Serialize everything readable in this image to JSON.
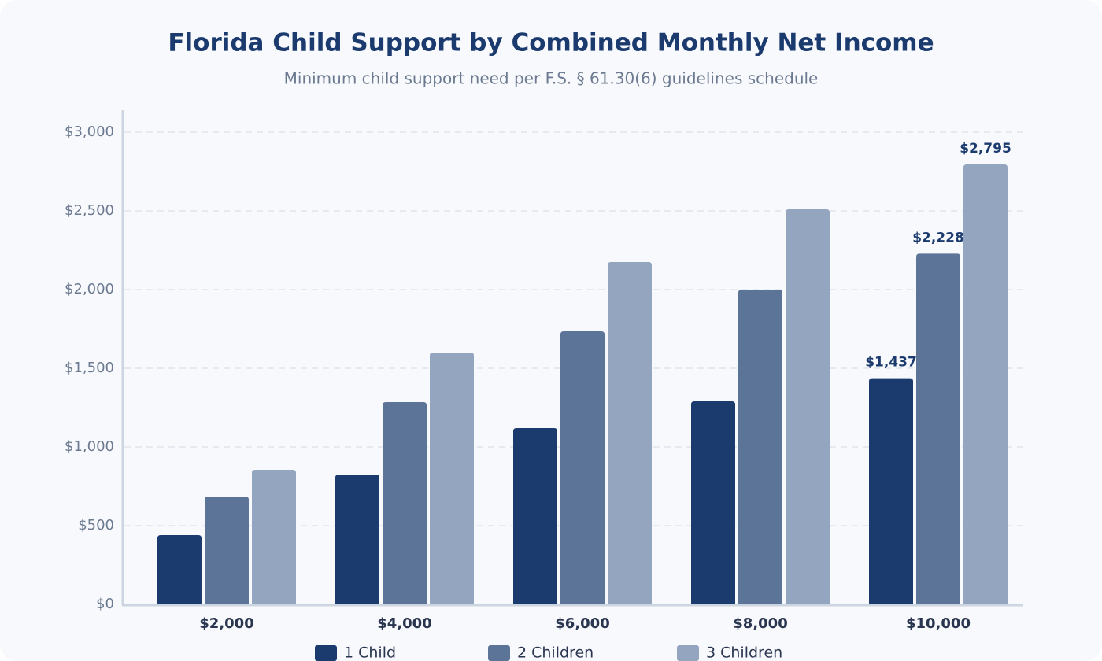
{
  "chart_data": {
    "type": "bar",
    "title": "Florida Child Support by Combined Monthly Net Income",
    "subtitle": "Minimum child support need per F.S. § 61.30(6) guidelines schedule",
    "categories": [
      "$2,000",
      "$4,000",
      "$6,000",
      "$8,000",
      "$10,000"
    ],
    "series": [
      {
        "name": "1 Child",
        "color": "#1b3a6e",
        "values": [
          440,
          825,
          1120,
          1290,
          1437
        ],
        "value_labels": [
          null,
          null,
          null,
          null,
          "$1,437"
        ]
      },
      {
        "name": "2 Children",
        "color": "#5d7499",
        "values": [
          685,
          1285,
          1735,
          2000,
          2228
        ],
        "value_labels": [
          null,
          null,
          null,
          null,
          "$2,228"
        ]
      },
      {
        "name": "3 Children",
        "color": "#94a5bf",
        "values": [
          855,
          1600,
          2175,
          2510,
          2795
        ],
        "value_labels": [
          null,
          null,
          null,
          null,
          "$2,795"
        ]
      }
    ],
    "ylim": [
      0,
      3000
    ],
    "yticks": [
      {
        "value": 0,
        "label": "$0"
      },
      {
        "value": 500,
        "label": "$500"
      },
      {
        "value": 1000,
        "label": "$1,000"
      },
      {
        "value": 1500,
        "label": "$1,500"
      },
      {
        "value": 2000,
        "label": "$2,000"
      },
      {
        "value": 2500,
        "label": "$2,500"
      },
      {
        "value": 3000,
        "label": "$3,000"
      }
    ],
    "grid": true,
    "legend": "bottom"
  }
}
